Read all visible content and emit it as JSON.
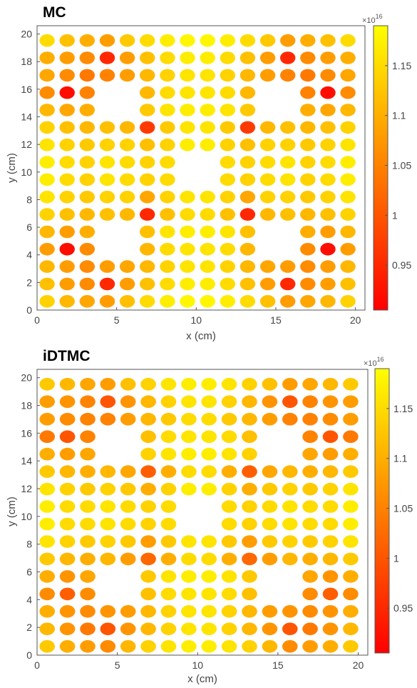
{
  "colors": {
    "low": "#ff0000",
    "mid": "#ff8c00",
    "high": "#ffff00",
    "axis": "#555555",
    "background": "#ffffff"
  },
  "chart_data": [
    {
      "type": "heatmap",
      "title": "MC",
      "xlabel": "x (cm)",
      "ylabel": "y (cm)",
      "xlim": [
        0,
        20.6
      ],
      "ylim": [
        0,
        20.6
      ],
      "xticks": [
        0,
        5,
        10,
        15,
        20
      ],
      "yticks": [
        0,
        2,
        4,
        6,
        8,
        10,
        12,
        14,
        16,
        18,
        20
      ],
      "grid": false,
      "colorbar": {
        "exponent": "×10^16",
        "range": [
          0.905,
          1.19
        ],
        "ticks": [
          0.95,
          1,
          1.05,
          1.1,
          1.15
        ],
        "colormap": "autumn (red to yellow)"
      },
      "pitch_cm": 1.26,
      "rows_top_to_bottom": [
        [
          1.15,
          1.12,
          1.1,
          1.08,
          1.13,
          1.15,
          1.17,
          1.18,
          1.18,
          1.17,
          1.15,
          1.13,
          1.08,
          1.1,
          1.12,
          1.15
        ],
        [
          1.1,
          1.08,
          1.06,
          0.95,
          1.08,
          1.12,
          1.15,
          1.17,
          1.17,
          1.15,
          1.12,
          1.08,
          0.95,
          1.06,
          1.08,
          1.1
        ],
        [
          1.09,
          1.06,
          1.04,
          1.05,
          1.08,
          1.11,
          1.14,
          1.16,
          1.16,
          1.14,
          1.11,
          1.08,
          1.05,
          1.04,
          1.06,
          1.09
        ],
        [
          1.06,
          0.92,
          1.05,
          null,
          null,
          1.11,
          1.15,
          1.16,
          1.16,
          1.15,
          1.11,
          null,
          null,
          1.05,
          0.92,
          1.06
        ],
        [
          1.11,
          1.09,
          1.1,
          null,
          null,
          1.13,
          1.16,
          1.17,
          1.17,
          1.16,
          1.13,
          null,
          null,
          1.1,
          1.09,
          1.11
        ],
        [
          1.14,
          1.12,
          1.11,
          1.12,
          1.11,
          0.97,
          1.13,
          1.16,
          1.16,
          1.13,
          0.97,
          1.11,
          1.12,
          1.11,
          1.12,
          1.14
        ],
        [
          1.16,
          1.14,
          1.13,
          1.14,
          1.14,
          1.12,
          1.14,
          1.17,
          1.17,
          1.14,
          1.12,
          1.14,
          1.14,
          1.13,
          1.14,
          1.16
        ],
        [
          1.17,
          1.15,
          1.14,
          1.16,
          1.15,
          1.14,
          1.15,
          null,
          null,
          1.15,
          1.14,
          1.15,
          1.16,
          1.14,
          1.15,
          1.17
        ],
        [
          1.17,
          1.15,
          1.14,
          1.16,
          1.15,
          1.14,
          1.15,
          null,
          null,
          1.15,
          1.14,
          1.15,
          1.16,
          1.14,
          1.15,
          1.17
        ],
        [
          1.16,
          1.14,
          1.13,
          1.14,
          1.14,
          1.09,
          1.14,
          1.16,
          1.16,
          1.14,
          1.09,
          1.14,
          1.14,
          1.13,
          1.14,
          1.16
        ],
        [
          1.14,
          1.12,
          1.11,
          1.12,
          1.11,
          0.95,
          1.12,
          1.15,
          1.15,
          1.12,
          0.95,
          1.11,
          1.12,
          1.11,
          1.12,
          1.14
        ],
        [
          1.11,
          1.08,
          1.1,
          null,
          null,
          1.12,
          1.16,
          1.17,
          1.17,
          1.16,
          1.12,
          null,
          null,
          1.1,
          1.08,
          1.11
        ],
        [
          1.08,
          0.92,
          1.06,
          null,
          null,
          1.11,
          1.15,
          1.16,
          1.16,
          1.15,
          1.11,
          null,
          null,
          1.06,
          0.92,
          1.08
        ],
        [
          1.11,
          1.08,
          1.06,
          1.08,
          1.09,
          1.11,
          1.14,
          1.16,
          1.16,
          1.14,
          1.11,
          1.09,
          1.08,
          1.06,
          1.08,
          1.11
        ],
        [
          1.12,
          1.08,
          1.06,
          0.95,
          1.08,
          1.12,
          1.15,
          1.17,
          1.17,
          1.15,
          1.12,
          1.08,
          0.95,
          1.06,
          1.08,
          1.12
        ],
        [
          1.14,
          1.11,
          1.09,
          1.08,
          1.12,
          1.15,
          1.17,
          1.18,
          1.18,
          1.17,
          1.15,
          1.12,
          1.08,
          1.09,
          1.11,
          1.14
        ]
      ]
    },
    {
      "type": "heatmap",
      "title": "iDTMC",
      "xlabel": "x (cm)",
      "ylabel": "y (cm)",
      "xlim": [
        0,
        20.6
      ],
      "ylim": [
        0,
        20.6
      ],
      "xticks": [
        0,
        5,
        10,
        15,
        20
      ],
      "yticks": [
        0,
        2,
        4,
        6,
        8,
        10,
        12,
        14,
        16,
        18,
        20
      ],
      "grid": false,
      "colorbar": {
        "exponent": "×10^16",
        "range": [
          0.905,
          1.19
        ],
        "ticks": [
          0.95,
          1,
          1.05,
          1.1,
          1.15
        ],
        "colormap": "autumn (red to yellow)"
      },
      "pitch_cm": 1.26,
      "rows_top_to_bottom": [
        [
          1.13,
          1.11,
          1.09,
          1.08,
          1.12,
          1.14,
          1.16,
          1.17,
          1.17,
          1.16,
          1.14,
          1.12,
          1.08,
          1.09,
          1.11,
          1.13
        ],
        [
          1.08,
          1.07,
          1.05,
          1.0,
          1.07,
          1.11,
          1.14,
          1.16,
          1.16,
          1.14,
          1.11,
          1.07,
          1.0,
          1.05,
          1.07,
          1.08
        ],
        [
          1.08,
          1.06,
          1.05,
          1.05,
          1.08,
          1.11,
          1.13,
          1.15,
          1.15,
          1.13,
          1.11,
          1.08,
          1.05,
          1.05,
          1.06,
          1.08
        ],
        [
          1.04,
          1.0,
          1.05,
          null,
          null,
          1.12,
          1.15,
          1.16,
          1.16,
          1.15,
          1.12,
          null,
          null,
          1.05,
          1.0,
          1.04
        ],
        [
          1.1,
          1.08,
          1.09,
          null,
          null,
          1.14,
          1.16,
          1.17,
          1.17,
          1.16,
          1.14,
          null,
          null,
          1.09,
          1.08,
          1.1
        ],
        [
          1.13,
          1.11,
          1.1,
          1.11,
          1.09,
          1.01,
          1.1,
          1.15,
          1.15,
          1.1,
          1.01,
          1.09,
          1.11,
          1.1,
          1.11,
          1.13
        ],
        [
          1.16,
          1.14,
          1.13,
          1.14,
          1.13,
          1.1,
          1.14,
          1.17,
          1.17,
          1.14,
          1.1,
          1.13,
          1.14,
          1.13,
          1.14,
          1.16
        ],
        [
          1.17,
          1.15,
          1.15,
          1.16,
          1.15,
          1.14,
          1.15,
          null,
          null,
          1.15,
          1.14,
          1.15,
          1.16,
          1.15,
          1.15,
          1.17
        ],
        [
          1.17,
          1.15,
          1.15,
          1.16,
          1.15,
          1.14,
          1.15,
          null,
          null,
          1.15,
          1.14,
          1.15,
          1.16,
          1.15,
          1.15,
          1.17
        ],
        [
          1.16,
          1.14,
          1.13,
          1.14,
          1.13,
          1.08,
          1.13,
          1.16,
          1.16,
          1.13,
          1.08,
          1.13,
          1.14,
          1.13,
          1.14,
          1.16
        ],
        [
          1.13,
          1.11,
          1.1,
          1.11,
          1.08,
          1.02,
          1.1,
          1.15,
          1.15,
          1.1,
          1.02,
          1.08,
          1.11,
          1.1,
          1.11,
          1.13
        ],
        [
          1.1,
          1.07,
          1.09,
          null,
          null,
          1.13,
          1.16,
          1.17,
          1.17,
          1.16,
          1.13,
          null,
          null,
          1.09,
          1.07,
          1.1
        ],
        [
          1.06,
          1.01,
          1.06,
          null,
          null,
          1.12,
          1.15,
          1.16,
          1.16,
          1.15,
          1.12,
          null,
          null,
          1.06,
          1.01,
          1.06
        ],
        [
          1.1,
          1.07,
          1.06,
          1.07,
          1.08,
          1.11,
          1.14,
          1.16,
          1.16,
          1.14,
          1.11,
          1.08,
          1.07,
          1.06,
          1.07,
          1.1
        ],
        [
          1.11,
          1.07,
          1.04,
          1.0,
          1.07,
          1.11,
          1.14,
          1.16,
          1.16,
          1.14,
          1.11,
          1.07,
          1.0,
          1.04,
          1.07,
          1.11
        ],
        [
          1.13,
          1.1,
          1.08,
          1.06,
          1.11,
          1.14,
          1.16,
          1.17,
          1.17,
          1.16,
          1.14,
          1.11,
          1.06,
          1.08,
          1.1,
          1.13
        ]
      ]
    }
  ]
}
